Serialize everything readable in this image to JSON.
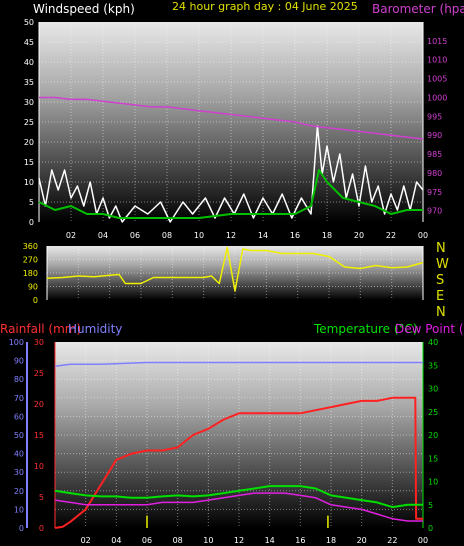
{
  "chart_data": [
    {
      "type": "line",
      "title": "24 hour graph day : 04 June 2025",
      "left_axis": {
        "label": "Windspeed (kph)",
        "range": [
          0,
          50
        ],
        "ticks": [
          0,
          5,
          10,
          15,
          20,
          25,
          30,
          35,
          40,
          45,
          50
        ]
      },
      "right_axis": {
        "label": "Barometer (hpa",
        "range": [
          967,
          1020
        ],
        "ticks": [
          970,
          975,
          980,
          985,
          990,
          995,
          1000,
          1005,
          1010,
          1015
        ]
      },
      "x_ticks": [
        "02",
        "04",
        "06",
        "08",
        "10",
        "12",
        "14",
        "16",
        "18",
        "20",
        "22",
        "00"
      ],
      "series": [
        {
          "name": "Windspeed (kph)",
          "color": "#ffffff",
          "values": [
            [
              0,
              11
            ],
            [
              0.4,
              4
            ],
            [
              0.8,
              13
            ],
            [
              1.2,
              8
            ],
            [
              1.6,
              13
            ],
            [
              2,
              6
            ],
            [
              2.4,
              9
            ],
            [
              2.8,
              4
            ],
            [
              3.2,
              10
            ],
            [
              3.6,
              2
            ],
            [
              4,
              6
            ],
            [
              4.4,
              1
            ],
            [
              4.8,
              4
            ],
            [
              5.2,
              0
            ],
            [
              6,
              4
            ],
            [
              6.8,
              2
            ],
            [
              7.6,
              5
            ],
            [
              8.2,
              0
            ],
            [
              9,
              5
            ],
            [
              9.6,
              2
            ],
            [
              10.4,
              6
            ],
            [
              11,
              1
            ],
            [
              11.6,
              6
            ],
            [
              12.2,
              2
            ],
            [
              12.8,
              7
            ],
            [
              13.4,
              1
            ],
            [
              14,
              6
            ],
            [
              14.6,
              2
            ],
            [
              15.2,
              7
            ],
            [
              15.8,
              1
            ],
            [
              16.4,
              6
            ],
            [
              17,
              2
            ],
            [
              17.4,
              24
            ],
            [
              17.7,
              12
            ],
            [
              18,
              19
            ],
            [
              18.4,
              10
            ],
            [
              18.8,
              17
            ],
            [
              19.2,
              6
            ],
            [
              19.6,
              12
            ],
            [
              20,
              4
            ],
            [
              20.4,
              14
            ],
            [
              20.8,
              5
            ],
            [
              21.2,
              9
            ],
            [
              21.6,
              2
            ],
            [
              22,
              7
            ],
            [
              22.4,
              3
            ],
            [
              22.8,
              9
            ],
            [
              23.2,
              3
            ],
            [
              23.6,
              10
            ],
            [
              24,
              8
            ]
          ]
        },
        {
          "name": "Wind speed average",
          "color": "#00c000",
          "values": [
            [
              0,
              5
            ],
            [
              1,
              3
            ],
            [
              2,
              4
            ],
            [
              3,
              2
            ],
            [
              4,
              2
            ],
            [
              5,
              1
            ],
            [
              6,
              1
            ],
            [
              8,
              1
            ],
            [
              10,
              1
            ],
            [
              12,
              2
            ],
            [
              14,
              2
            ],
            [
              16,
              2
            ],
            [
              17,
              4
            ],
            [
              17.5,
              13
            ],
            [
              18,
              10
            ],
            [
              19,
              6
            ],
            [
              20,
              5
            ],
            [
              21,
              4
            ],
            [
              22,
              2
            ],
            [
              23,
              3
            ],
            [
              24,
              3
            ]
          ]
        },
        {
          "name": "Barometer (hpa",
          "color": "#d040d0",
          "values": [
            [
              0,
              1000
            ],
            [
              1,
              1000
            ],
            [
              2,
              999.5
            ],
            [
              3,
              999.5
            ],
            [
              4,
              999
            ],
            [
              5,
              998.5
            ],
            [
              6,
              998
            ],
            [
              7,
              997.5
            ],
            [
              8,
              997.5
            ],
            [
              9,
              997
            ],
            [
              10,
              996.5
            ],
            [
              11,
              996
            ],
            [
              12,
              995.5
            ],
            [
              13,
              995
            ],
            [
              14,
              994.5
            ],
            [
              15,
              994
            ],
            [
              16,
              993.5
            ],
            [
              17,
              992.5
            ],
            [
              18,
              992
            ],
            [
              19,
              991.5
            ],
            [
              20,
              991
            ],
            [
              21,
              990.5
            ],
            [
              22,
              990
            ],
            [
              23,
              989.5
            ],
            [
              24,
              989
            ]
          ]
        }
      ]
    },
    {
      "type": "line",
      "right_labels": [
        "N",
        "W",
        "S",
        "E",
        "N"
      ],
      "left_axis": {
        "range": [
          0,
          360
        ],
        "ticks": [
          0,
          90,
          180,
          270,
          360
        ]
      },
      "series": [
        {
          "name": "Wind direction",
          "color": "#f0f000",
          "values": [
            [
              0,
              145
            ],
            [
              1,
              150
            ],
            [
              2,
              160
            ],
            [
              3,
              155
            ],
            [
              4,
              165
            ],
            [
              4.6,
              170
            ],
            [
              5,
              110
            ],
            [
              6,
              110
            ],
            [
              6.8,
              150
            ],
            [
              8,
              150
            ],
            [
              10,
              150
            ],
            [
              10.5,
              160
            ],
            [
              11,
              110
            ],
            [
              11.5,
              350
            ],
            [
              12,
              60
            ],
            [
              12.5,
              340
            ],
            [
              13,
              330
            ],
            [
              14,
              330
            ],
            [
              15,
              310
            ],
            [
              16,
              310
            ],
            [
              17,
              310
            ],
            [
              18,
              290
            ],
            [
              19,
              220
            ],
            [
              20,
              210
            ],
            [
              21,
              230
            ],
            [
              22,
              215
            ],
            [
              23,
              220
            ],
            [
              24,
              250
            ]
          ]
        }
      ]
    },
    {
      "type": "line",
      "labels": {
        "rainfall": "Rainfall (mm)",
        "humidity": "Humidity",
        "temperature": "Temperature (°C)",
        "dewpoint": "Dew Point (°C)"
      },
      "humidity_axis": {
        "range": [
          0,
          100
        ],
        "ticks": [
          0,
          10,
          20,
          30,
          40,
          50,
          60,
          70,
          80,
          90,
          100
        ]
      },
      "rainfall_axis": {
        "range": [
          0,
          30
        ],
        "ticks": [
          0,
          5,
          10,
          15,
          20,
          25,
          30
        ]
      },
      "temperature_axis": {
        "range": [
          0,
          40
        ],
        "ticks": [
          0,
          5,
          10,
          15,
          20,
          25,
          30,
          35,
          40
        ]
      },
      "x_ticks": [
        "02",
        "04",
        "06",
        "08",
        "10",
        "12",
        "14",
        "16",
        "18",
        "20",
        "22",
        "00"
      ],
      "series": [
        {
          "name": "Humidity",
          "color": "#8080ff",
          "values": [
            [
              0,
              87
            ],
            [
              1,
              88
            ],
            [
              3,
              88
            ],
            [
              6,
              89
            ],
            [
              10,
              89
            ],
            [
              14,
              89
            ],
            [
              18,
              89
            ],
            [
              24,
              89
            ]
          ]
        },
        {
          "name": "Rainfall (mm)",
          "color": "#ff2020",
          "values": [
            [
              0,
              0
            ],
            [
              0.5,
              0.2
            ],
            [
              1,
              1
            ],
            [
              2,
              3
            ],
            [
              3,
              7
            ],
            [
              4,
              11
            ],
            [
              5,
              12
            ],
            [
              6,
              12.5
            ],
            [
              7,
              12.5
            ],
            [
              8,
              13
            ],
            [
              9,
              15
            ],
            [
              10,
              16
            ],
            [
              11,
              17.5
            ],
            [
              12,
              18.5
            ],
            [
              13,
              18.5
            ],
            [
              14,
              18.5
            ],
            [
              15,
              18.5
            ],
            [
              16,
              18.5
            ],
            [
              17,
              19
            ],
            [
              18,
              19.5
            ],
            [
              19,
              20
            ],
            [
              20,
              20.5
            ],
            [
              21,
              20.5
            ],
            [
              22,
              21
            ],
            [
              23,
              21
            ],
            [
              23.5,
              21
            ],
            [
              23.55,
              1.5
            ],
            [
              24,
              1.5
            ]
          ]
        },
        {
          "name": "Temperature (°C)",
          "color": "#00e000",
          "values": [
            [
              0,
              8
            ],
            [
              1,
              7.5
            ],
            [
              2,
              7
            ],
            [
              3,
              6.8
            ],
            [
              4,
              6.8
            ],
            [
              5,
              6.5
            ],
            [
              6,
              6.5
            ],
            [
              7,
              6.8
            ],
            [
              8,
              7
            ],
            [
              9,
              6.8
            ],
            [
              10,
              7
            ],
            [
              11,
              7.5
            ],
            [
              12,
              8
            ],
            [
              13,
              8.5
            ],
            [
              14,
              9
            ],
            [
              15,
              9
            ],
            [
              16,
              9
            ],
            [
              17,
              8.5
            ],
            [
              18,
              7
            ],
            [
              19,
              6.5
            ],
            [
              20,
              6
            ],
            [
              21,
              5.5
            ],
            [
              22,
              4.5
            ],
            [
              23,
              5
            ],
            [
              24,
              5
            ]
          ]
        },
        {
          "name": "Dew Point (°C)",
          "color": "#e020e0",
          "values": [
            [
              0,
              6
            ],
            [
              1,
              5.5
            ],
            [
              2,
              5
            ],
            [
              3,
              5
            ],
            [
              4,
              5
            ],
            [
              5,
              5
            ],
            [
              6,
              5
            ],
            [
              7,
              5.5
            ],
            [
              8,
              5.5
            ],
            [
              9,
              5.5
            ],
            [
              10,
              6
            ],
            [
              11,
              6.5
            ],
            [
              12,
              7
            ],
            [
              13,
              7.5
            ],
            [
              14,
              7.5
            ],
            [
              15,
              7.5
            ],
            [
              16,
              7
            ],
            [
              17,
              6.5
            ],
            [
              18,
              5
            ],
            [
              19,
              4.5
            ],
            [
              20,
              4
            ],
            [
              21,
              3
            ],
            [
              22,
              2
            ],
            [
              23,
              1.5
            ],
            [
              24,
              1.5
            ]
          ]
        },
        {
          "name": "Rain marks",
          "color": "#f0f000",
          "values": [
            [
              6,
              2
            ],
            [
              17.8,
              2
            ]
          ]
        }
      ]
    }
  ]
}
